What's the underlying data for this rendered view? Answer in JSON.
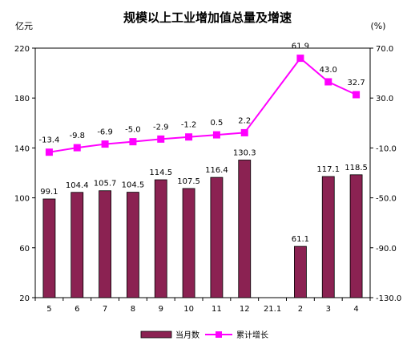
{
  "chart_data": {
    "type": "bar+line",
    "title": "规模以上工业增加值总量及增速",
    "left_unit": "亿元",
    "right_unit": "%",
    "categories": [
      "5",
      "6",
      "7",
      "8",
      "9",
      "10",
      "11",
      "12",
      "21.1",
      "2",
      "3",
      "4"
    ],
    "series": [
      {
        "name": "当月数",
        "type": "bar",
        "axis": "left",
        "color": "#8B2252",
        "values": [
          99.1,
          104.4,
          105.7,
          104.5,
          114.5,
          107.5,
          116.4,
          130.3,
          null,
          61.1,
          117.1,
          118.5
        ],
        "labels": [
          "99.1",
          "104.4",
          "105.7",
          "104.5",
          "114.5",
          "107.5",
          "116.4",
          "130.3",
          "",
          "61.1",
          "117.1",
          "118.5"
        ]
      },
      {
        "name": "累计增长",
        "type": "line",
        "axis": "right",
        "color": "#FF00FF",
        "values": [
          -13.4,
          -9.8,
          -6.9,
          -5.0,
          -2.9,
          -1.2,
          0.5,
          2.2,
          null,
          61.9,
          43.0,
          32.7
        ],
        "labels": [
          "-13.4",
          "-9.8",
          "-6.9",
          "-5.0",
          "-2.9",
          "-1.2",
          "0.5",
          "2.2",
          "",
          "61.9",
          "43.0",
          "32.7"
        ]
      }
    ],
    "y_left": {
      "min": 20,
      "max": 220,
      "ticks": [
        "20",
        "60",
        "100",
        "140",
        "180",
        "220"
      ]
    },
    "y_right": {
      "min": -130,
      "max": 70,
      "ticks": [
        "-130.0",
        "-90.0",
        "-50.0",
        "-10.0",
        "30.0",
        "70.0"
      ]
    },
    "grid": false,
    "legend_position": "bottom"
  }
}
